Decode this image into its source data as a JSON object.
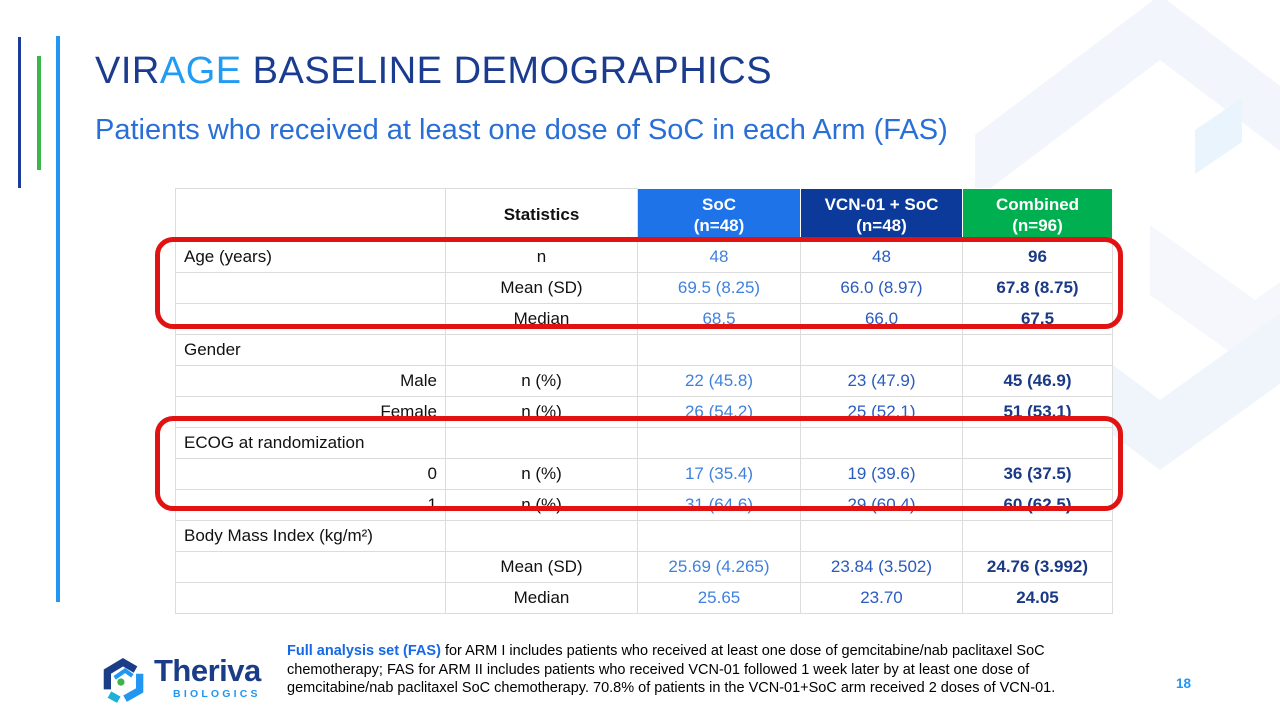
{
  "slide": {
    "title": {
      "part1": "VIR",
      "part2": "AGE",
      "part3": " BASELINE DEMOGRAPHICS"
    },
    "subtitle": "Patients who received at least one dose of SoC in each Arm (FAS)",
    "page_number": "18"
  },
  "table": {
    "header": [
      {
        "title": "",
        "subtitle": "",
        "style": "plain"
      },
      {
        "title": "Statistics",
        "subtitle": "",
        "style": "plain"
      },
      {
        "title": "SoC",
        "subtitle": "(n=48)",
        "style": "soc"
      },
      {
        "title": "VCN-01 + SoC",
        "subtitle": "(n=48)",
        "style": "vcn"
      },
      {
        "title": "Combined",
        "subtitle": "(n=96)",
        "style": "comb"
      }
    ],
    "rows": [
      {
        "label": "Age (years)",
        "align": "left",
        "stat": "n",
        "soc": "48",
        "vcn": "48",
        "combined": "96"
      },
      {
        "label": "",
        "align": "left",
        "stat": "Mean (SD)",
        "soc": "69.5 (8.25)",
        "vcn": "66.0 (8.97)",
        "combined": "67.8 (8.75)"
      },
      {
        "label": "",
        "align": "left",
        "stat": "Median",
        "soc": "68.5",
        "vcn": "66.0",
        "combined": "67.5"
      },
      {
        "label": "Gender",
        "align": "left",
        "stat": "",
        "soc": "",
        "vcn": "",
        "combined": ""
      },
      {
        "label": "Male",
        "align": "right",
        "stat": "n (%)",
        "soc": "22 (45.8)",
        "vcn": "23 (47.9)",
        "combined": "45 (46.9)"
      },
      {
        "label": "Female",
        "align": "right",
        "stat": "n (%)",
        "soc": "26 (54.2)",
        "vcn": "25 (52.1)",
        "combined": "51 (53.1)"
      },
      {
        "label": "ECOG at randomization",
        "align": "left",
        "stat": "",
        "soc": "",
        "vcn": "",
        "combined": ""
      },
      {
        "label": "0",
        "align": "right",
        "stat": "n (%)",
        "soc": "17 (35.4)",
        "vcn": "19 (39.6)",
        "combined": "36 (37.5)"
      },
      {
        "label": "1",
        "align": "right",
        "stat": "n (%)",
        "soc": "31 (64.6)",
        "vcn": "29 (60.4)",
        "combined": "60 (62.5)"
      },
      {
        "label": "Body Mass Index (kg/m²)",
        "align": "left",
        "stat": "",
        "soc": "",
        "vcn": "",
        "combined": ""
      },
      {
        "label": "",
        "align": "left",
        "stat": "Mean (SD)",
        "soc": "25.69 (4.265)",
        "vcn": "23.84 (3.502)",
        "combined": "24.76 (3.992)"
      },
      {
        "label": "",
        "align": "left",
        "stat": "Median",
        "soc": "25.65",
        "vcn": "23.70",
        "combined": "24.05"
      }
    ]
  },
  "footnote": {
    "lead": "Full analysis set (FAS)",
    "body": " for ARM I includes patients who received at least one dose of gemcitabine/nab paclitaxel SoC chemotherapy; FAS for ARM II includes patients who received VCN-01 followed 1 week later by at least one dose of gemcitabine/nab paclitaxel SoC chemotherapy. 70.8% of patients in the VCN-01+SoC arm received 2 doses of VCN-01."
  },
  "logo": {
    "name": "Theriva",
    "tagline": "BIOLOGICS"
  },
  "colors": {
    "title_navy": "#1b3b8f",
    "title_accent_blue": "#229bf2",
    "subtitle_blue": "#2a6fd6",
    "header_soc_bg": "#1e73e8",
    "header_vcn_bg": "#0b3a9b",
    "header_combined_bg": "#00b050",
    "soc_value_text": "#4081dd",
    "vcn_value_text": "#2a5bbf",
    "combined_value_text": "#1b3a85",
    "highlight_red": "#e11212",
    "accent_bar_navy": "#1b3c9b",
    "accent_bar_green": "#3cb54a",
    "accent_bar_blue": "#2196f3",
    "footnote_lead_blue": "#1768e5",
    "page_number_blue": "#2196f3"
  }
}
